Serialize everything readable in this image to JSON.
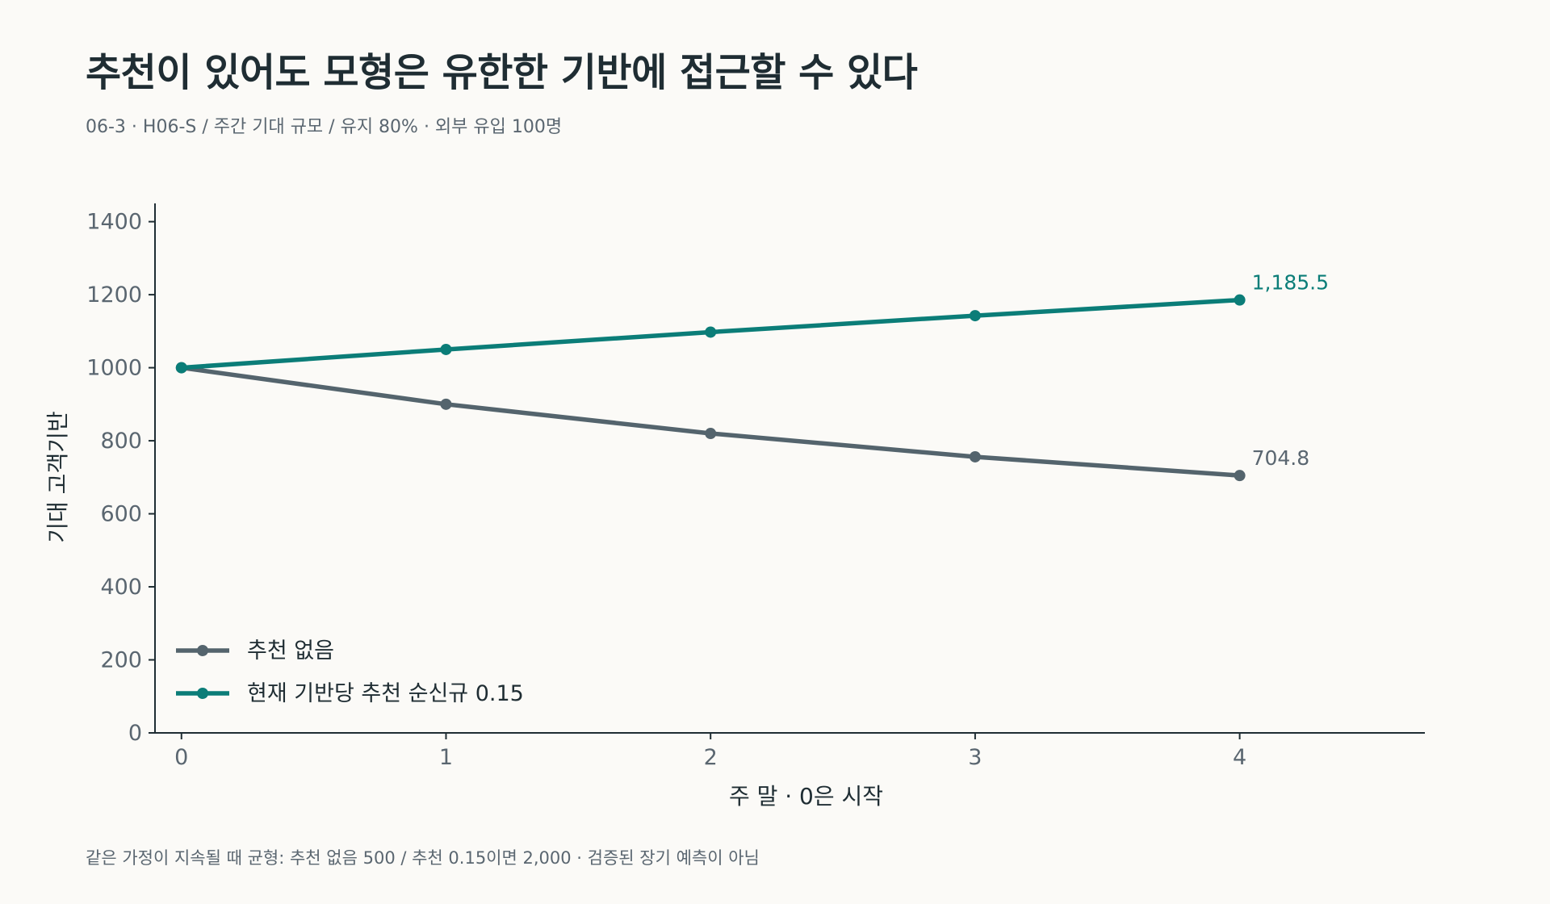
{
  "title": "추천이 있어도 모형은 유한한 기반에 접근할 수 있다",
  "subtitle": "06-3 · H06-S / 주간 기대 규모 / 유지 80% · 외부 유입 100명",
  "footnote": "같은 가정이 지속될 때 균형: 추천 없음 500 / 추천 0.15이면 2,000 · 검증된 장기 예측이 아님",
  "chart_data": {
    "type": "line",
    "xlabel": "주 말 · 0은 시작",
    "ylabel": "기대 고객기반",
    "x": [
      0,
      1,
      2,
      3,
      4
    ],
    "xlim": [
      -0.1,
      4.7
    ],
    "ylim": [
      0,
      1450
    ],
    "yticks": [
      0,
      200,
      400,
      600,
      800,
      1000,
      1200,
      1400
    ],
    "xticks": [
      0,
      1,
      2,
      3,
      4
    ],
    "grid": false,
    "legend_position": "lower-left",
    "series": [
      {
        "name": "추천 없음",
        "values": [
          1000,
          900,
          820,
          756,
          704.8
        ],
        "color": "#54646d",
        "end_label": "704.8"
      },
      {
        "name": "현재 기반당 추천 순신규 0.15",
        "values": [
          1000,
          1050,
          1097.5,
          1142.6,
          1185.5
        ],
        "color": "#0b7d78",
        "end_label": "1,185.5"
      }
    ]
  }
}
